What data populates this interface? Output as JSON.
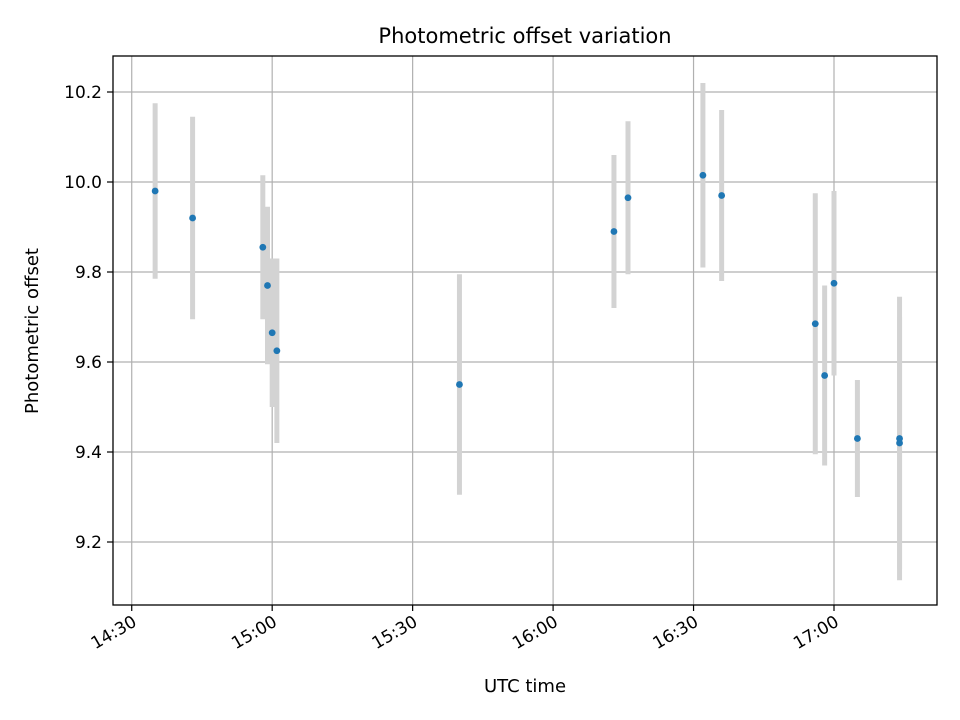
{
  "chart_data": {
    "type": "scatter",
    "title": "Photometric offset variation",
    "xlabel": "UTC time",
    "ylabel": "Photometric offset",
    "x_ticks": [
      "14:30",
      "15:00",
      "15:30",
      "16:00",
      "16:30",
      "17:00"
    ],
    "y_ticks": [
      "9.2",
      "9.4",
      "9.6",
      "9.8",
      "10.0",
      "10.2"
    ],
    "xlim": [
      "14:26",
      "17:22"
    ],
    "ylim": [
      9.06,
      10.28
    ],
    "grid": true,
    "colors": {
      "points": "#1f77b4",
      "errorbars": "#d3d3d3",
      "grid": "#b0b0b0"
    },
    "series": [
      {
        "points": [
          {
            "x": "14:35",
            "y": 9.98,
            "yerr": 0.195
          },
          {
            "x": "14:43",
            "y": 9.92,
            "yerr": 0.225
          },
          {
            "x": "14:58",
            "y": 9.855,
            "yerr": 0.16
          },
          {
            "x": "14:59",
            "y": 9.77,
            "yerr": 0.175
          },
          {
            "x": "15:00",
            "y": 9.665,
            "yerr": 0.165
          },
          {
            "x": "15:01",
            "y": 9.625,
            "yerr": 0.205
          },
          {
            "x": "15:40",
            "y": 9.55,
            "yerr": 0.245
          },
          {
            "x": "16:13",
            "y": 9.89,
            "yerr": 0.17
          },
          {
            "x": "16:16",
            "y": 9.965,
            "yerr": 0.17
          },
          {
            "x": "16:32",
            "y": 10.015,
            "yerr": 0.205
          },
          {
            "x": "16:36",
            "y": 9.97,
            "yerr": 0.19
          },
          {
            "x": "16:56",
            "y": 9.685,
            "yerr": 0.29
          },
          {
            "x": "16:58",
            "y": 9.57,
            "yerr": 0.2
          },
          {
            "x": "17:00",
            "y": 9.775,
            "yerr": 0.205
          },
          {
            "x": "17:05",
            "y": 9.43,
            "yerr": 0.13
          },
          {
            "x": "17:14",
            "y": 9.43,
            "yerr": 0.315
          },
          {
            "x": "17:14",
            "y": 9.42,
            "yerr": 0.28
          }
        ]
      }
    ]
  }
}
